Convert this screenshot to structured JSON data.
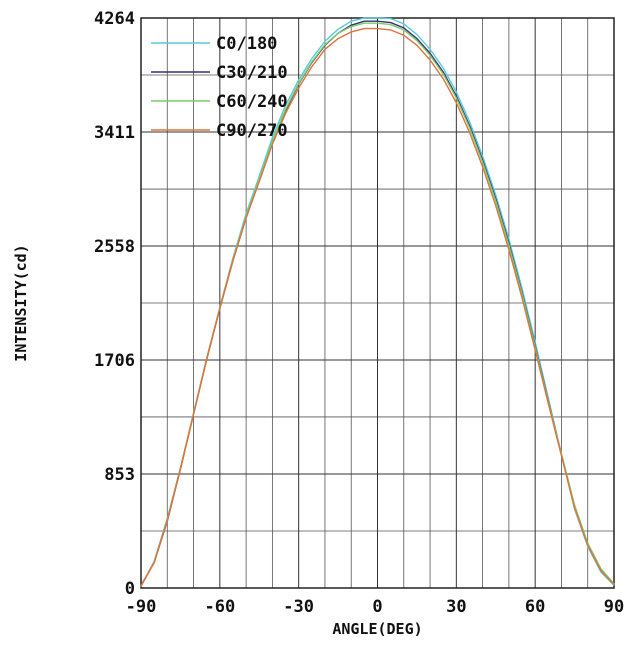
{
  "chart_data": {
    "type": "line",
    "xlabel": "ANGLE(DEG)",
    "ylabel": "INTENSITY(cd)",
    "xlim": [
      -90,
      90
    ],
    "ylim": [
      0,
      4264
    ],
    "x_ticks": [
      -90,
      -60,
      -30,
      0,
      30,
      60,
      90
    ],
    "x_tick_labels": [
      "-90",
      "-60",
      "-30",
      "0",
      "30",
      "60",
      "90"
    ],
    "y_ticks": [
      0,
      853,
      1706,
      2558,
      3411,
      4264
    ],
    "y_tick_labels": [
      "0",
      "853",
      "1706",
      "2558",
      "3411",
      "4264"
    ],
    "grid": true,
    "legend_position": "top-left",
    "series": [
      {
        "name": "C0/180",
        "color": "#5bc8dc",
        "x": [
          -90,
          -85,
          -80,
          -75,
          -70,
          -65,
          -60,
          -55,
          -50,
          -45,
          -40,
          -35,
          -30,
          -25,
          -20,
          -15,
          -10,
          -5,
          0,
          5,
          10,
          15,
          20,
          25,
          30,
          35,
          40,
          45,
          50,
          55,
          60,
          65,
          70,
          75,
          80,
          85,
          90
        ],
        "y": [
          10,
          200,
          520,
          900,
          1310,
          1720,
          2100,
          2470,
          2800,
          3080,
          3370,
          3610,
          3800,
          3960,
          4090,
          4180,
          4240,
          4264,
          4264,
          4260,
          4220,
          4140,
          4030,
          3890,
          3710,
          3490,
          3230,
          2940,
          2610,
          2240,
          1840,
          1420,
          1000,
          590,
          310,
          120,
          20
        ]
      },
      {
        "name": "C30/210",
        "color": "#3b2f78",
        "x": [
          -90,
          -85,
          -80,
          -75,
          -70,
          -65,
          -60,
          -55,
          -50,
          -45,
          -40,
          -35,
          -30,
          -25,
          -20,
          -15,
          -10,
          -5,
          0,
          5,
          10,
          15,
          20,
          25,
          30,
          35,
          40,
          45,
          50,
          55,
          60,
          65,
          70,
          75,
          80,
          85,
          90
        ],
        "y": [
          20,
          190,
          500,
          890,
          1300,
          1710,
          2090,
          2450,
          2770,
          3050,
          3330,
          3570,
          3770,
          3930,
          4060,
          4150,
          4210,
          4240,
          4240,
          4230,
          4190,
          4110,
          4000,
          3860,
          3680,
          3460,
          3200,
          2910,
          2580,
          2210,
          1810,
          1400,
          1000,
          610,
          330,
          140,
          30
        ]
      },
      {
        "name": "C60/240",
        "color": "#7acc6a",
        "x": [
          -90,
          -85,
          -80,
          -75,
          -70,
          -65,
          -60,
          -55,
          -50,
          -45,
          -40,
          -35,
          -30,
          -25,
          -20,
          -15,
          -10,
          -5,
          0,
          5,
          10,
          15,
          20,
          25,
          30,
          35,
          40,
          45,
          50,
          55,
          60,
          65,
          70,
          75,
          80,
          85,
          90
        ],
        "y": [
          15,
          195,
          510,
          895,
          1305,
          1715,
          2095,
          2460,
          2780,
          3060,
          3340,
          3580,
          3775,
          3935,
          4065,
          4150,
          4200,
          4225,
          4225,
          4215,
          4175,
          4095,
          3985,
          3845,
          3665,
          3445,
          3185,
          2895,
          2565,
          2200,
          1800,
          1395,
          1005,
          620,
          335,
          145,
          30
        ]
      },
      {
        "name": "C90/270",
        "color": "#e0733a",
        "x": [
          -90,
          -85,
          -80,
          -75,
          -70,
          -65,
          -60,
          -55,
          -50,
          -45,
          -40,
          -35,
          -30,
          -25,
          -20,
          -15,
          -10,
          -5,
          0,
          5,
          10,
          15,
          20,
          25,
          30,
          35,
          40,
          45,
          50,
          55,
          60,
          65,
          70,
          75,
          80,
          85,
          90
        ],
        "y": [
          15,
          190,
          505,
          890,
          1300,
          1710,
          2090,
          2450,
          2770,
          3040,
          3320,
          3550,
          3740,
          3900,
          4030,
          4110,
          4160,
          4185,
          4185,
          4175,
          4135,
          4060,
          3950,
          3810,
          3630,
          3410,
          3150,
          2860,
          2530,
          2170,
          1780,
          1380,
          990,
          600,
          320,
          130,
          25
        ]
      }
    ]
  }
}
